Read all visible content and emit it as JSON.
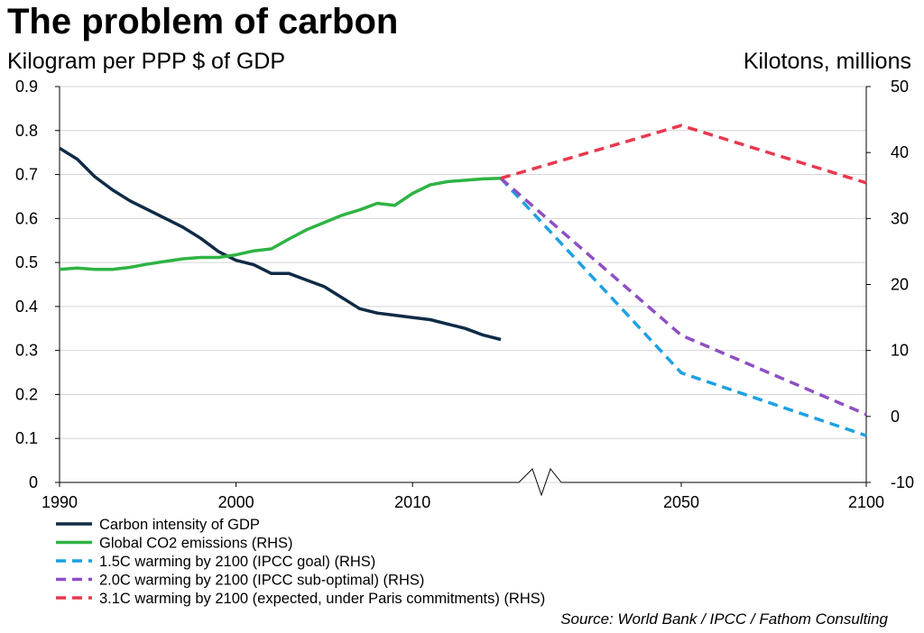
{
  "chart_data": {
    "type": "line",
    "title": "The problem of carbon",
    "ylabel_left": "Kilogram per PPP $ of GDP",
    "ylabel_right": "Kilotons, millions",
    "source": "Source: World Bank / IPCC / Fathom Consulting",
    "x_axis": {
      "min": 1990,
      "max": 2100,
      "ticks": [
        1990,
        2000,
        2010,
        2050,
        2100
      ],
      "break_between": [
        2015,
        2030
      ]
    },
    "y_left": {
      "min": 0,
      "max": 0.9,
      "ticks": [
        "0",
        "0.1",
        "0.2",
        "0.3",
        "0.4",
        "0.5",
        "0.6",
        "0.7",
        "0.8",
        "0.9"
      ]
    },
    "y_right": {
      "min": -10,
      "max": 50,
      "ticks": [
        "-10",
        "0",
        "10",
        "20",
        "30",
        "40",
        "50"
      ]
    },
    "grid": true,
    "legend_position": "bottom-left",
    "series": [
      {
        "name": "Carbon intensity of GDP",
        "axis": "left",
        "style": "solid",
        "color": "#0f2b46",
        "x": [
          1990,
          1991,
          1992,
          1993,
          1994,
          1995,
          1996,
          1997,
          1998,
          1999,
          2000,
          2001,
          2002,
          2003,
          2004,
          2005,
          2006,
          2007,
          2008,
          2009,
          2010,
          2011,
          2012,
          2013,
          2014,
          2015
        ],
        "y": [
          0.76,
          0.735,
          0.695,
          0.665,
          0.64,
          0.62,
          0.6,
          0.58,
          0.555,
          0.525,
          0.505,
          0.495,
          0.475,
          0.475,
          0.46,
          0.445,
          0.42,
          0.395,
          0.385,
          0.38,
          0.375,
          0.37,
          0.36,
          0.35,
          0.335,
          0.325
        ]
      },
      {
        "name": "Global CO2 emissions (RHS)",
        "axis": "right",
        "style": "solid",
        "color": "#2fb344",
        "x": [
          1990,
          1991,
          1992,
          1993,
          1994,
          1995,
          1996,
          1997,
          1998,
          1999,
          2000,
          2001,
          2002,
          2003,
          2004,
          2005,
          2006,
          2007,
          2008,
          2009,
          2010,
          2011,
          2012,
          2013,
          2014,
          2015
        ],
        "y": [
          22.3,
          22.5,
          22.3,
          22.3,
          22.6,
          23.1,
          23.5,
          23.9,
          24.1,
          24.1,
          24.5,
          25.1,
          25.4,
          26.9,
          28.3,
          29.4,
          30.5,
          31.3,
          32.3,
          32.0,
          33.8,
          35.1,
          35.6,
          35.8,
          36.0,
          36.1
        ]
      },
      {
        "name": "1.5C warming by 2100 (IPCC goal) (RHS)",
        "axis": "right",
        "style": "dashed",
        "color": "#1da1e2",
        "x": [
          2015,
          2050,
          2100
        ],
        "y": [
          36.1,
          6.6,
          -2.9
        ]
      },
      {
        "name": "2.0C warming by 2100 (IPCC sub-optimal) (RHS)",
        "axis": "right",
        "style": "dashed",
        "color": "#8e4fc4",
        "x": [
          2015,
          2050,
          2100
        ],
        "y": [
          36.1,
          12.3,
          0.3
        ]
      },
      {
        "name": "3.1C warming by 2100 (expected, under Paris commitments) (RHS)",
        "axis": "right",
        "style": "dashed",
        "color": "#e8384f",
        "x": [
          2015,
          2050,
          2100
        ],
        "y": [
          36.1,
          44.1,
          35.4
        ]
      }
    ]
  }
}
